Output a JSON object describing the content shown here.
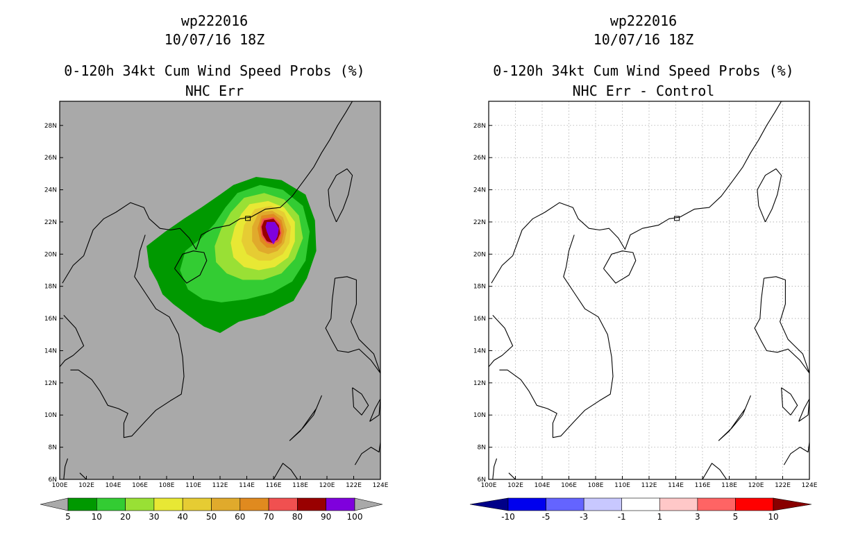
{
  "panels": [
    {
      "storm_id": "wp222016",
      "datetime": "10/07/16 18Z",
      "product": "0-120h 34kt Cum Wind Speed Probs (%)",
      "subtitle": "NHC Err",
      "background_color": "#a9a9a9",
      "grid": false,
      "colorbar": {
        "labels": [
          "5",
          "10",
          "20",
          "30",
          "40",
          "50",
          "60",
          "70",
          "80",
          "90",
          "100"
        ],
        "colors": [
          "#009900",
          "#33cc33",
          "#99e035",
          "#e8e834",
          "#e6cc33",
          "#e0aa2c",
          "#e08a1f",
          "#f05050",
          "#990000",
          "#7f00dd"
        ],
        "under_color": "#a9a9a9",
        "over_color": "#a9a9a9"
      }
    },
    {
      "storm_id": "wp222016",
      "datetime": "10/07/16 18Z",
      "product": "0-120h 34kt Cum Wind Speed Probs (%)",
      "subtitle": "NHC Err - Control",
      "background_color": "#ffffff",
      "grid": true,
      "colorbar": {
        "labels": [
          "-10",
          "-5",
          "-3",
          "-1",
          "1",
          "3",
          "5",
          "10"
        ],
        "colors": [
          "#0000ee",
          "#6464ff",
          "#c8c8ff",
          "#ffffff",
          "#ffc8c8",
          "#ff6464",
          "#ff0000"
        ],
        "under_color": "#000088",
        "over_color": "#880000"
      }
    }
  ],
  "axes": {
    "lon_labels": [
      "100E",
      "102E",
      "104E",
      "106E",
      "108E",
      "110E",
      "112E",
      "114E",
      "116E",
      "118E",
      "120E",
      "122E",
      "124E"
    ],
    "lat_labels": [
      "6N",
      "8N",
      "10N",
      "12N",
      "14N",
      "16N",
      "18N",
      "20N",
      "22N",
      "24N",
      "26N",
      "28N"
    ],
    "lon_range": [
      100,
      124
    ],
    "lat_range": [
      6,
      29.5
    ]
  },
  "probability_field": {
    "center_lon": 116.0,
    "center_lat": 21.4,
    "contour_levels": [
      5,
      10,
      20,
      30,
      40,
      50,
      60,
      70,
      80,
      90
    ]
  }
}
